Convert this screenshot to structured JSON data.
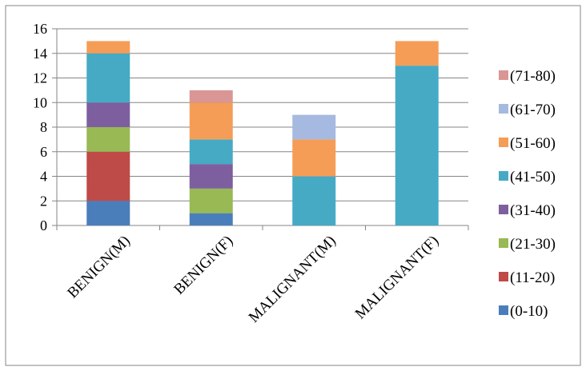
{
  "chart_data": {
    "type": "bar",
    "stacked": true,
    "categories": [
      "BENIGN(M)",
      "BENIGN(F)",
      "MALIGNANT(M)",
      "MALIGNANT(F)"
    ],
    "series": [
      {
        "name": "(0-10)",
        "color": "#4a7ebb",
        "values": [
          2,
          1,
          0,
          0
        ]
      },
      {
        "name": "(11-20)",
        "color": "#be4b48",
        "values": [
          4,
          0,
          0,
          0
        ]
      },
      {
        "name": "(21-30)",
        "color": "#98b954",
        "values": [
          2,
          2,
          0,
          0
        ]
      },
      {
        "name": "(31-40)",
        "color": "#7d5fa0",
        "values": [
          2,
          2,
          0,
          0
        ]
      },
      {
        "name": "(41-50)",
        "color": "#46aac5",
        "values": [
          4,
          2,
          4,
          13
        ]
      },
      {
        "name": "(51-60)",
        "color": "#f59d56",
        "values": [
          1,
          3,
          3,
          2
        ]
      },
      {
        "name": "(61-70)",
        "color": "#a6b9e0",
        "values": [
          0,
          0,
          2,
          0
        ]
      },
      {
        "name": "(71-80)",
        "color": "#d99694",
        "values": [
          0,
          1,
          0,
          0
        ]
      }
    ],
    "yticks": [
      0,
      2,
      4,
      6,
      8,
      10,
      12,
      14,
      16
    ],
    "ylim": [
      0,
      16
    ],
    "grid": true,
    "legend_position": "right"
  }
}
